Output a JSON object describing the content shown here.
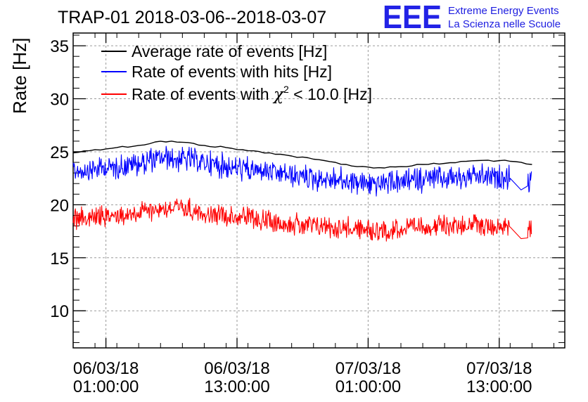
{
  "chart_data": {
    "type": "line",
    "title": "TRAP-01 2018-03-06--2018-03-07",
    "ylabel": "Rate [Hz]",
    "xlabel": "",
    "ylim": [
      6.5,
      36.2
    ],
    "xlim": [
      "2018-03-05 22:00",
      "2018-03-07 19:00"
    ],
    "yticks": [
      10,
      15,
      20,
      25,
      30,
      35
    ],
    "xticks": [
      {
        "date": "06/03/18",
        "time": "01:00:00",
        "t": "2018-03-06 01:00"
      },
      {
        "date": "06/03/18",
        "time": "13:00:00",
        "t": "2018-03-06 13:00"
      },
      {
        "date": "07/03/18",
        "time": "01:00:00",
        "t": "2018-03-07 01:00"
      },
      {
        "date": "07/03/18",
        "time": "13:00:00",
        "t": "2018-03-07 13:00"
      }
    ],
    "grid": true,
    "legend_position": "top-left",
    "series": [
      {
        "name": "Average rate of events [Hz]",
        "color": "#000000",
        "noise": 0,
        "points": [
          [
            "2018-03-05 22:00",
            24.9
          ],
          [
            "2018-03-06 00:00",
            25.2
          ],
          [
            "2018-03-06 02:00",
            25.4
          ],
          [
            "2018-03-06 04:00",
            25.6
          ],
          [
            "2018-03-06 06:00",
            26.0
          ],
          [
            "2018-03-06 08:00",
            25.9
          ],
          [
            "2018-03-06 10:00",
            25.6
          ],
          [
            "2018-03-06 12:00",
            25.4
          ],
          [
            "2018-03-06 14:00",
            25.1
          ],
          [
            "2018-03-06 16:00",
            24.9
          ],
          [
            "2018-03-06 18:00",
            24.6
          ],
          [
            "2018-03-06 20:00",
            24.3
          ],
          [
            "2018-03-06 22:00",
            24.0
          ],
          [
            "2018-03-07 00:00",
            23.6
          ],
          [
            "2018-03-07 02:00",
            23.5
          ],
          [
            "2018-03-07 04:00",
            23.6
          ],
          [
            "2018-03-07 06:00",
            23.8
          ],
          [
            "2018-03-07 08:00",
            23.9
          ],
          [
            "2018-03-07 10:00",
            24.1
          ],
          [
            "2018-03-07 12:00",
            24.2
          ],
          [
            "2018-03-07 14:00",
            24.1
          ],
          [
            "2018-03-07 16:00",
            23.8
          ]
        ]
      },
      {
        "name": "Rate of events with hits [Hz]",
        "color": "#0000ff",
        "noise": 0.9,
        "points": [
          [
            "2018-03-05 22:00",
            23.2
          ],
          [
            "2018-03-06 00:00",
            23.4
          ],
          [
            "2018-03-06 02:00",
            23.6
          ],
          [
            "2018-03-06 04:00",
            23.9
          ],
          [
            "2018-03-06 06:00",
            24.4
          ],
          [
            "2018-03-06 08:00",
            24.3
          ],
          [
            "2018-03-06 10:00",
            24.0
          ],
          [
            "2018-03-06 12:00",
            23.6
          ],
          [
            "2018-03-06 14:00",
            23.3
          ],
          [
            "2018-03-06 16:00",
            23.1
          ],
          [
            "2018-03-06 18:00",
            22.8
          ],
          [
            "2018-03-06 20:00",
            22.5
          ],
          [
            "2018-03-06 22:00",
            22.4
          ],
          [
            "2018-03-07 00:00",
            22.1
          ],
          [
            "2018-03-07 02:00",
            22.0
          ],
          [
            "2018-03-07 04:00",
            22.1
          ],
          [
            "2018-03-07 06:00",
            22.4
          ],
          [
            "2018-03-07 08:00",
            22.5
          ],
          [
            "2018-03-07 10:00",
            22.6
          ],
          [
            "2018-03-07 12:00",
            22.6
          ],
          [
            "2018-03-07 14:00",
            22.5
          ],
          [
            "2018-03-07 15:00",
            21.4
          ],
          [
            "2018-03-07 16:00",
            22.2
          ]
        ]
      },
      {
        "name": "Rate of events with χ² < 10.0 [Hz]",
        "color": "#ff0000",
        "noise": 0.8,
        "points": [
          [
            "2018-03-05 22:00",
            18.6
          ],
          [
            "2018-03-06 00:00",
            18.8
          ],
          [
            "2018-03-06 02:00",
            19.0
          ],
          [
            "2018-03-06 04:00",
            19.3
          ],
          [
            "2018-03-06 06:00",
            19.7
          ],
          [
            "2018-03-06 08:00",
            19.6
          ],
          [
            "2018-03-06 10:00",
            19.3
          ],
          [
            "2018-03-06 12:00",
            19.0
          ],
          [
            "2018-03-06 14:00",
            18.7
          ],
          [
            "2018-03-06 16:00",
            18.4
          ],
          [
            "2018-03-06 18:00",
            18.2
          ],
          [
            "2018-03-06 20:00",
            18.0
          ],
          [
            "2018-03-06 22:00",
            17.9
          ],
          [
            "2018-03-07 00:00",
            17.7
          ],
          [
            "2018-03-07 02:00",
            17.6
          ],
          [
            "2018-03-07 04:00",
            17.7
          ],
          [
            "2018-03-07 06:00",
            17.9
          ],
          [
            "2018-03-07 08:00",
            18.0
          ],
          [
            "2018-03-07 10:00",
            18.1
          ],
          [
            "2018-03-07 12:00",
            18.0
          ],
          [
            "2018-03-07 14:00",
            17.9
          ],
          [
            "2018-03-07 15:00",
            16.8
          ],
          [
            "2018-03-07 16:00",
            17.6
          ]
        ]
      }
    ],
    "legend": [
      {
        "text": "Average rate of events [Hz]",
        "color": "#000000"
      },
      {
        "text": "Rate of events with hits [Hz]",
        "color": "#0000ff"
      },
      {
        "text_before": "Rate of events with ",
        "symbol": "χ",
        "sup": "2",
        "text_after": " < 10.0 [Hz]",
        "color": "#ff0000"
      }
    ]
  },
  "logo": {
    "mark": "EEE",
    "line1": "Extreme Energy Events",
    "line2": "La Scienza nelle Scuole",
    "color": "#2222e6"
  }
}
